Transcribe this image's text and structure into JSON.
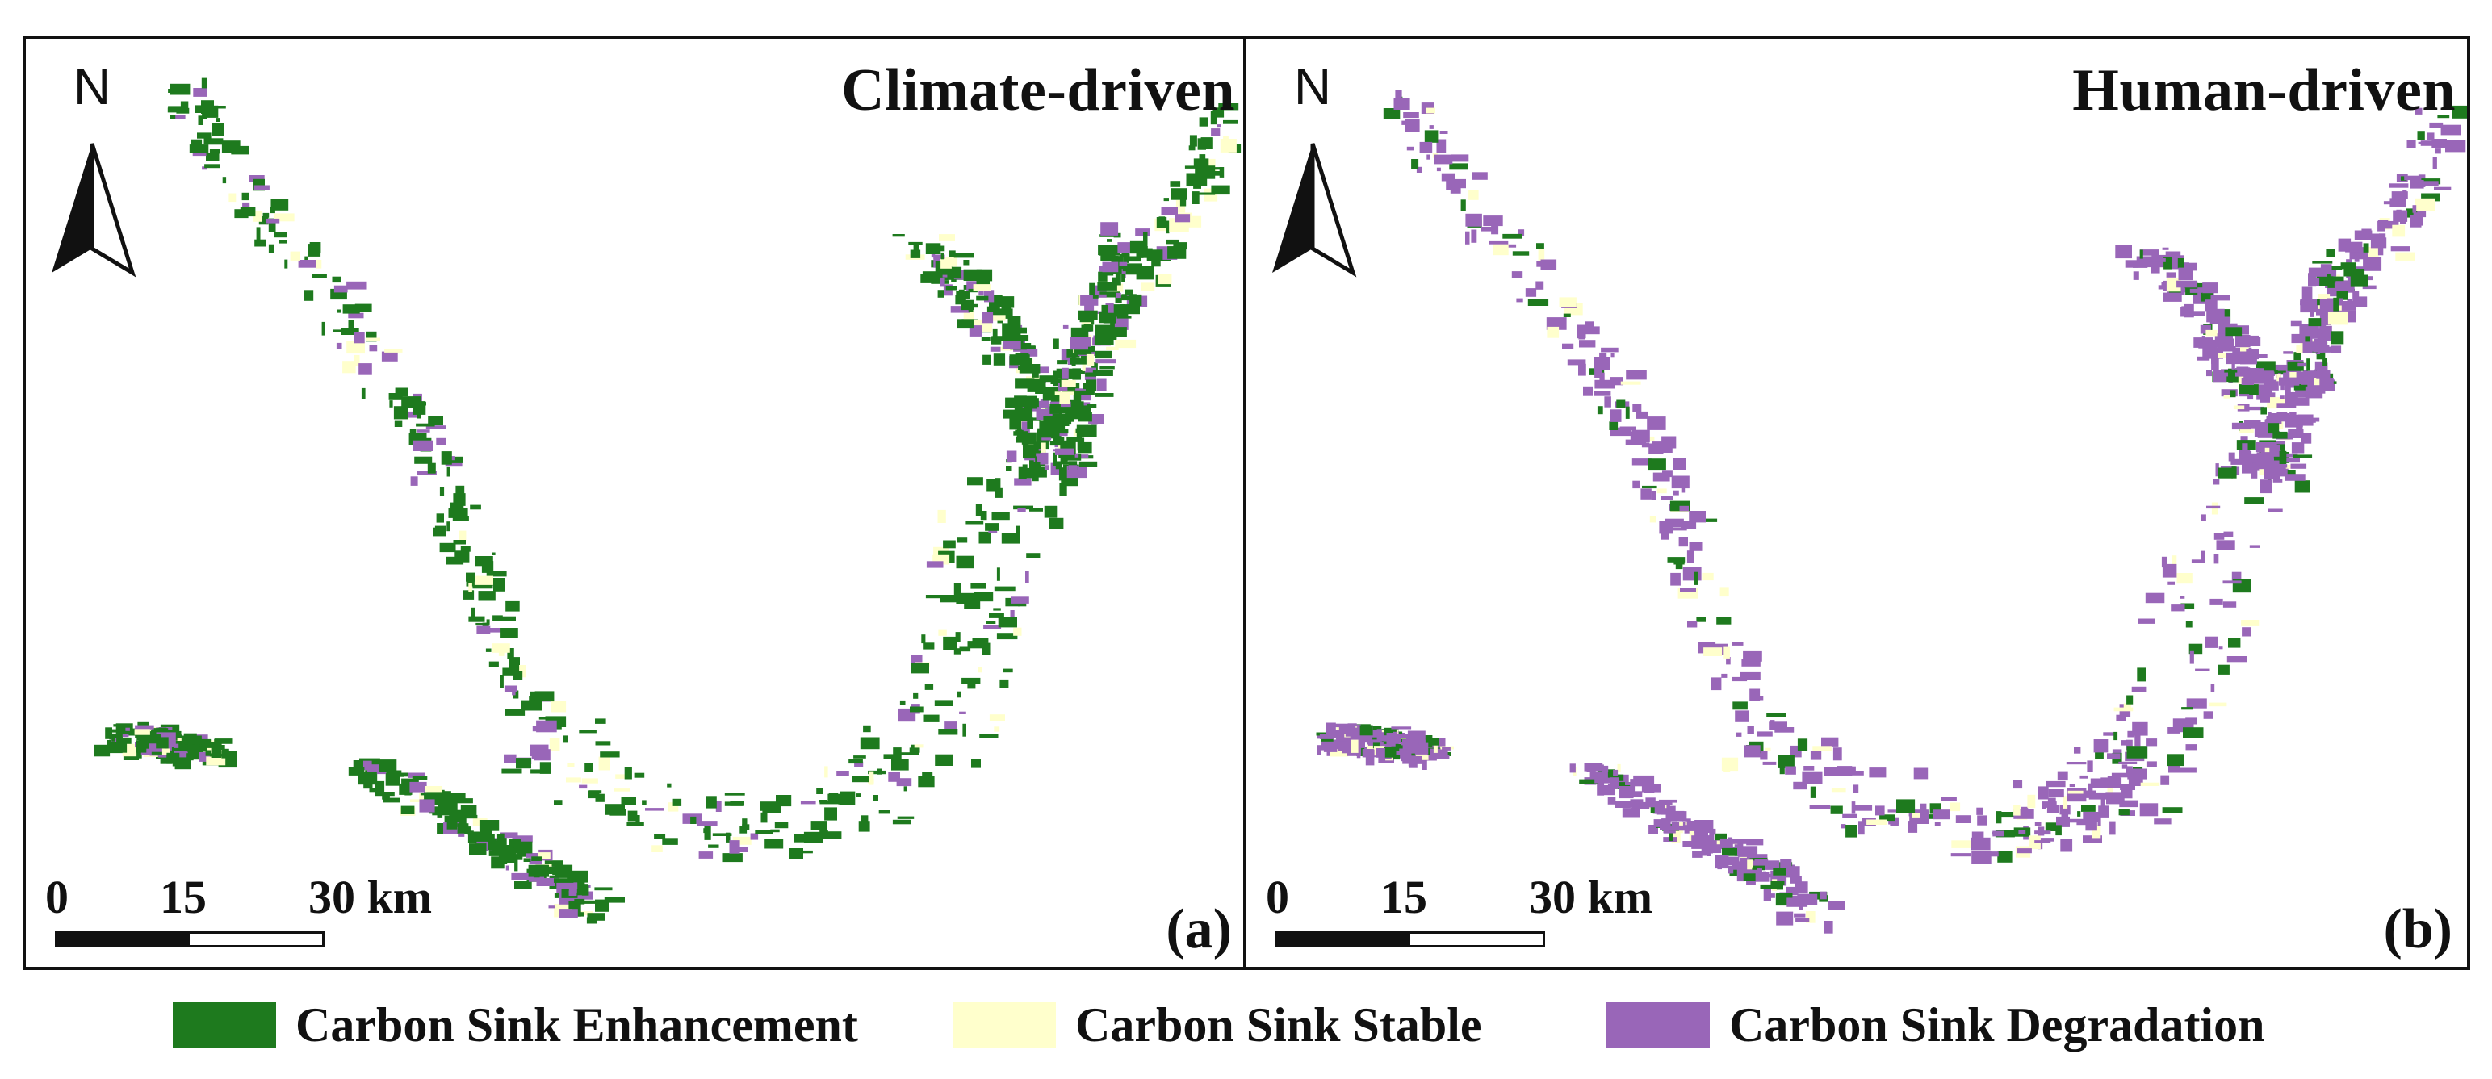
{
  "panels": [
    {
      "id": "a",
      "title": "Climate-driven",
      "tag": "(a)",
      "north_label": "N",
      "scale": {
        "labels": [
          "0",
          "15",
          "30 km"
        ]
      },
      "dominant": "enhancement"
    },
    {
      "id": "b",
      "title": "Human-driven",
      "tag": "(b)",
      "north_label": "N",
      "scale": {
        "labels": [
          "0",
          "15",
          "30 km"
        ]
      },
      "dominant": "degradation"
    }
  ],
  "legend": [
    {
      "key": "enhancement",
      "label": "Carbon Sink Enhancement",
      "color": "#1e7a1e"
    },
    {
      "key": "stable",
      "label": "Carbon Sink Stable",
      "color": "#ffffcc"
    },
    {
      "key": "degradation",
      "label": "Carbon Sink Degradation",
      "color": "#9966b8"
    }
  ]
}
